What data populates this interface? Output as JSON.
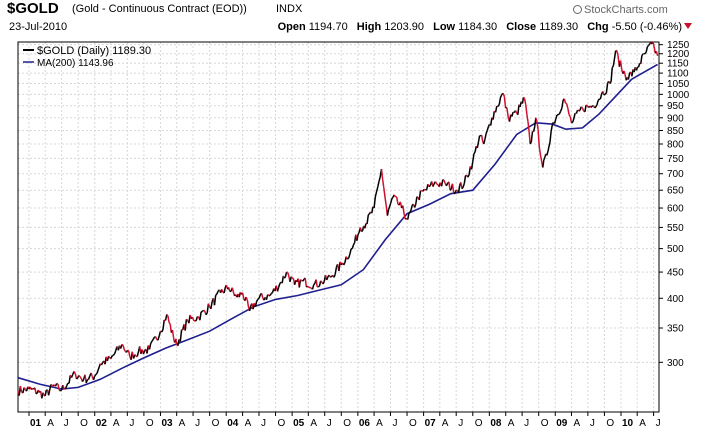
{
  "header": {
    "symbol": "$GOLD",
    "description": "(Gold - Continuous Contract (EOD))",
    "exchange": "INDX",
    "date": "23-Jul-2010",
    "brand": "StockCharts.com",
    "brand_icon": "copyright-icon",
    "open_label": "Open",
    "open_value": "1194.70",
    "high_label": "High",
    "high_value": "1203.90",
    "low_label": "Low",
    "low_value": "1184.30",
    "close_label": "Close",
    "close_value": "1189.30",
    "chg_label": "Chg",
    "chg_value": "-5.50 (-0.46%)",
    "chg_icon": "down-triangle-icon"
  },
  "chart_data": {
    "type": "line",
    "title": "$GOLD (Gold - Continuous Contract (EOD)) INDX",
    "y_scale": "log",
    "ylim": [
      240,
      1265
    ],
    "yticks": [
      300,
      350,
      400,
      450,
      500,
      550,
      600,
      650,
      700,
      750,
      800,
      850,
      900,
      950,
      1000,
      1050,
      1100,
      1150,
      1200,
      1250
    ],
    "x_range": [
      "2000-11-01",
      "2010-07-31"
    ],
    "x_tick_labels": [
      {
        "label": "01",
        "year": true
      },
      {
        "label": "A"
      },
      {
        "label": "J"
      },
      {
        "label": "O"
      },
      {
        "label": "02",
        "year": true
      },
      {
        "label": "A"
      },
      {
        "label": "J"
      },
      {
        "label": "O"
      },
      {
        "label": "03",
        "year": true
      },
      {
        "label": "A"
      },
      {
        "label": "J"
      },
      {
        "label": "O"
      },
      {
        "label": "04",
        "year": true
      },
      {
        "label": "A"
      },
      {
        "label": "J"
      },
      {
        "label": "O"
      },
      {
        "label": "05",
        "year": true
      },
      {
        "label": "A"
      },
      {
        "label": "J"
      },
      {
        "label": "O"
      },
      {
        "label": "06",
        "year": true
      },
      {
        "label": "A"
      },
      {
        "label": "J"
      },
      {
        "label": "O"
      },
      {
        "label": "07",
        "year": true
      },
      {
        "label": "A"
      },
      {
        "label": "J"
      },
      {
        "label": "O"
      },
      {
        "label": "08",
        "year": true
      },
      {
        "label": "A"
      },
      {
        "label": "J"
      },
      {
        "label": "O"
      },
      {
        "label": "09",
        "year": true
      },
      {
        "label": "A"
      },
      {
        "label": "J"
      },
      {
        "label": "O"
      },
      {
        "label": "10",
        "year": true
      },
      {
        "label": "A"
      },
      {
        "label": "J"
      }
    ],
    "legend": {
      "placement": "top-left",
      "entries": [
        {
          "text": "$GOLD (Daily) 1189.30",
          "color": "#000000"
        },
        {
          "text": "MA(200) 1143.96",
          "color": "#1f1f8f"
        }
      ]
    },
    "series": [
      {
        "name": "$GOLD (Daily)",
        "color": "#000000",
        "down_color": "#d0102e",
        "x": [
          "2000-11-01",
          "2001-01-01",
          "2001-03-01",
          "2001-04-01",
          "2001-05-15",
          "2001-07-01",
          "2001-09-15",
          "2001-11-01",
          "2002-01-01",
          "2002-02-01",
          "2002-04-01",
          "2002-06-01",
          "2002-07-15",
          "2002-09-01",
          "2002-11-01",
          "2003-01-01",
          "2003-02-05",
          "2003-03-15",
          "2003-04-01",
          "2003-06-01",
          "2003-08-01",
          "2003-10-01",
          "2003-12-01",
          "2004-01-15",
          "2004-03-01",
          "2004-04-01",
          "2004-05-10",
          "2004-07-01",
          "2004-09-01",
          "2004-11-01",
          "2004-12-01",
          "2005-01-15",
          "2005-03-01",
          "2005-05-01",
          "2005-06-15",
          "2005-08-01",
          "2005-10-01",
          "2005-12-01",
          "2006-01-15",
          "2006-02-15",
          "2006-04-01",
          "2006-05-12",
          "2006-06-14",
          "2006-07-15",
          "2006-09-01",
          "2006-10-05",
          "2006-12-01",
          "2007-02-01",
          "2007-03-01",
          "2007-05-01",
          "2007-07-01",
          "2007-08-15",
          "2007-10-01",
          "2007-11-08",
          "2007-12-01",
          "2008-01-15",
          "2008-03-17",
          "2008-04-15",
          "2008-06-01",
          "2008-07-15",
          "2008-08-15",
          "2008-09-15",
          "2008-10-24",
          "2008-11-15",
          "2008-12-15",
          "2009-02-20",
          "2009-04-01",
          "2009-06-01",
          "2009-08-01",
          "2009-09-15",
          "2009-11-01",
          "2009-12-02",
          "2010-01-05",
          "2010-02-05",
          "2010-03-15",
          "2010-04-15",
          "2010-05-15",
          "2010-06-21",
          "2010-07-23"
        ],
        "values": [
          264,
          266,
          262,
          258,
          270,
          265,
          285,
          278,
          282,
          298,
          305,
          325,
          308,
          315,
          318,
          345,
          372,
          335,
          325,
          362,
          368,
          385,
          410,
          420,
          402,
          410,
          378,
          400,
          405,
          430,
          450,
          425,
          432,
          425,
          430,
          440,
          465,
          500,
          550,
          560,
          600,
          715,
          580,
          630,
          600,
          570,
          630,
          660,
          670,
          670,
          650,
          670,
          740,
          830,
          800,
          900,
          1005,
          900,
          920,
          980,
          800,
          900,
          720,
          760,
          870,
          980,
          880,
          940,
          950,
          1000,
          1050,
          1215,
          1120,
          1080,
          1105,
          1150,
          1200,
          1255,
          1189
        ]
      },
      {
        "name": "MA(200)",
        "color": "#1f1f8f",
        "x": [
          "2000-11-01",
          "2001-03-01",
          "2001-07-01",
          "2001-10-01",
          "2002-02-01",
          "2002-06-01",
          "2002-10-01",
          "2003-02-01",
          "2003-06-01",
          "2003-10-01",
          "2004-02-01",
          "2004-06-01",
          "2004-10-01",
          "2005-02-01",
          "2005-06-01",
          "2005-10-01",
          "2006-02-01",
          "2006-06-01",
          "2006-10-01",
          "2007-02-01",
          "2007-06-01",
          "2007-10-01",
          "2008-02-01",
          "2008-06-01",
          "2008-09-15",
          "2008-12-15",
          "2009-03-01",
          "2009-06-01",
          "2009-09-01",
          "2009-12-01",
          "2010-03-01",
          "2010-07-23"
        ],
        "values": [
          280,
          272,
          266,
          268,
          278,
          292,
          306,
          320,
          332,
          345,
          365,
          385,
          398,
          405,
          415,
          425,
          455,
          520,
          585,
          610,
          640,
          650,
          730,
          835,
          880,
          875,
          855,
          860,
          915,
          990,
          1070,
          1144
        ]
      }
    ]
  }
}
